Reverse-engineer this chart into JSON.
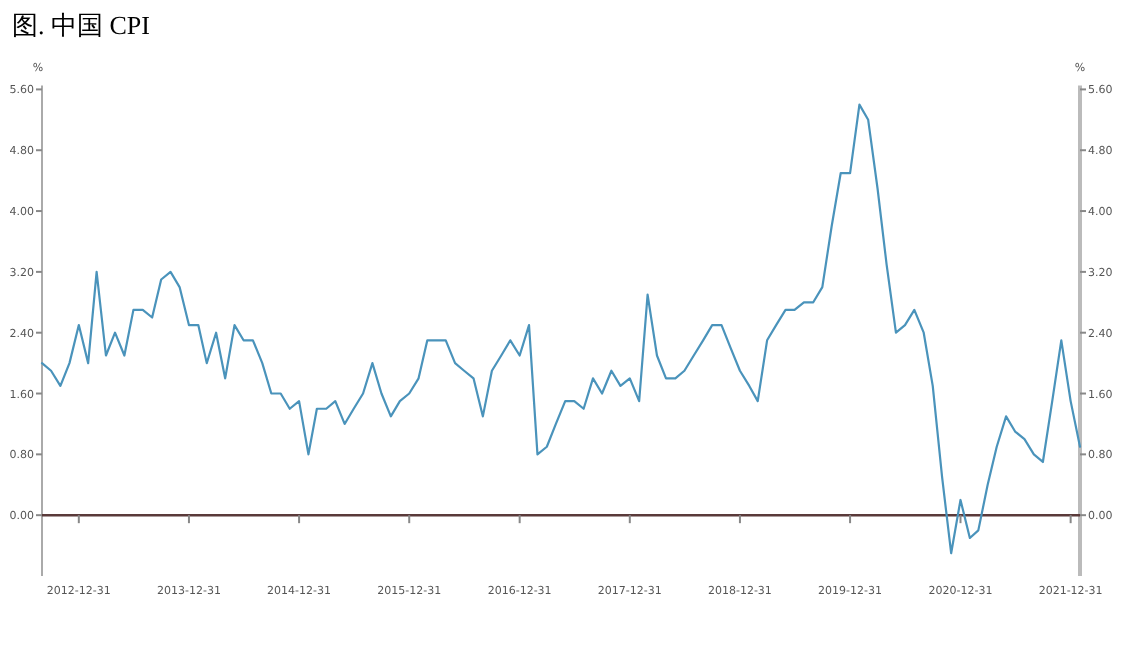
{
  "chart_data": {
    "type": "line",
    "title": "图. 中国 CPI",
    "ylabel": "%",
    "y2label": "%",
    "x": [
      "2012-08-31",
      "2012-09-30",
      "2012-10-31",
      "2012-11-30",
      "2012-12-31",
      "2013-01-31",
      "2013-02-28",
      "2013-03-31",
      "2013-04-30",
      "2013-05-31",
      "2013-06-30",
      "2013-07-31",
      "2013-08-31",
      "2013-09-30",
      "2013-10-31",
      "2013-11-30",
      "2013-12-31",
      "2014-01-31",
      "2014-02-28",
      "2014-03-31",
      "2014-04-30",
      "2014-05-31",
      "2014-06-30",
      "2014-07-31",
      "2014-08-31",
      "2014-09-30",
      "2014-10-31",
      "2014-11-30",
      "2014-12-31",
      "2015-01-31",
      "2015-02-28",
      "2015-03-31",
      "2015-04-30",
      "2015-05-31",
      "2015-06-30",
      "2015-07-31",
      "2015-08-31",
      "2015-09-30",
      "2015-10-31",
      "2015-11-30",
      "2015-12-31",
      "2016-01-31",
      "2016-02-29",
      "2016-03-31",
      "2016-04-30",
      "2016-05-31",
      "2016-06-30",
      "2016-07-31",
      "2016-08-31",
      "2016-09-30",
      "2016-10-31",
      "2016-11-30",
      "2016-12-31",
      "2017-01-31",
      "2017-02-28",
      "2017-03-31",
      "2017-04-30",
      "2017-05-31",
      "2017-06-30",
      "2017-07-31",
      "2017-08-31",
      "2017-09-30",
      "2017-10-31",
      "2017-11-30",
      "2017-12-31",
      "2018-01-31",
      "2018-02-28",
      "2018-03-31",
      "2018-04-30",
      "2018-05-31",
      "2018-06-30",
      "2018-07-31",
      "2018-08-31",
      "2018-09-30",
      "2018-10-31",
      "2018-11-30",
      "2018-12-31",
      "2019-01-31",
      "2019-02-28",
      "2019-03-31",
      "2019-04-30",
      "2019-05-31",
      "2019-06-30",
      "2019-07-31",
      "2019-08-31",
      "2019-09-30",
      "2019-10-31",
      "2019-11-30",
      "2019-12-31",
      "2020-01-31",
      "2020-02-29",
      "2020-03-31",
      "2020-04-30",
      "2020-05-31",
      "2020-06-30",
      "2020-07-31",
      "2020-08-31",
      "2020-09-30",
      "2020-10-31",
      "2020-11-30",
      "2020-12-31",
      "2021-01-31",
      "2021-02-28",
      "2021-03-31",
      "2021-04-30",
      "2021-05-31",
      "2021-06-30",
      "2021-07-31",
      "2021-08-31",
      "2021-09-30",
      "2021-10-31",
      "2021-11-30",
      "2021-12-31",
      "2022-01-31"
    ],
    "series": [
      {
        "color": "#4a93bb",
        "values": [
          2.0,
          1.9,
          1.7,
          2.0,
          2.5,
          2.0,
          3.2,
          2.1,
          2.4,
          2.1,
          2.7,
          2.7,
          2.6,
          3.1,
          3.2,
          3.0,
          2.5,
          2.5,
          2.0,
          2.4,
          1.8,
          2.5,
          2.3,
          2.3,
          2.0,
          1.6,
          1.6,
          1.4,
          1.5,
          0.8,
          1.4,
          1.4,
          1.5,
          1.2,
          1.4,
          1.6,
          2.0,
          1.6,
          1.3,
          1.5,
          1.6,
          1.8,
          2.3,
          2.3,
          2.3,
          2.0,
          1.9,
          1.8,
          1.3,
          1.9,
          2.1,
          2.3,
          2.1,
          2.5,
          0.8,
          0.9,
          1.2,
          1.5,
          1.5,
          1.4,
          1.8,
          1.6,
          1.9,
          1.7,
          1.8,
          1.5,
          2.9,
          2.1,
          1.8,
          1.8,
          1.9,
          2.1,
          2.3,
          2.5,
          2.5,
          2.2,
          1.9,
          1.7,
          1.5,
          2.3,
          2.5,
          2.7,
          2.7,
          2.8,
          2.8,
          3.0,
          3.8,
          4.5,
          4.5,
          5.4,
          5.2,
          4.3,
          3.3,
          2.4,
          2.5,
          2.7,
          2.4,
          1.7,
          0.5,
          -0.5,
          0.2,
          -0.3,
          -0.2,
          0.4,
          0.9,
          1.3,
          1.1,
          1.0,
          0.8,
          0.7,
          1.5,
          2.3,
          1.5,
          0.9
        ]
      }
    ],
    "xlim": [
      "2012-08-31",
      "2022-01-31"
    ],
    "xticks": [
      "2012-12-31",
      "2013-12-31",
      "2014-12-31",
      "2015-12-31",
      "2016-12-31",
      "2017-12-31",
      "2018-12-31",
      "2019-12-31",
      "2020-12-31",
      "2021-12-31"
    ],
    "ylim": [
      -0.8,
      5.6
    ],
    "yticks": [
      {
        "value": 0,
        "label": "0.00"
      },
      {
        "value": 0.8,
        "label": "0.80"
      },
      {
        "value": 1.6,
        "label": "1.60"
      },
      {
        "value": 2.4,
        "label": "2.40"
      },
      {
        "value": 3.2,
        "label": "3.20"
      },
      {
        "value": 4.0,
        "label": "4.00"
      },
      {
        "value": 4.8,
        "label": "4.80"
      },
      {
        "value": 5.6,
        "label": "5.60"
      }
    ],
    "y2lim": [
      -0.8,
      5.6
    ],
    "y2ticks": [
      {
        "value": 0,
        "label": "0.00"
      },
      {
        "value": 0.8,
        "label": "0.80"
      },
      {
        "value": 1.6,
        "label": "1.60"
      },
      {
        "value": 2.4,
        "label": "2.40"
      },
      {
        "value": 3.2,
        "label": "3.20"
      },
      {
        "value": 4.0,
        "label": "4.00"
      },
      {
        "value": 4.8,
        "label": "4.80"
      },
      {
        "value": 5.6,
        "label": "5.60"
      }
    ],
    "ref_lines": [
      {
        "axis": "y",
        "value": 0,
        "color": "#5a3a3a"
      }
    ],
    "grid": false,
    "marker": "none",
    "line_style": "solid"
  }
}
